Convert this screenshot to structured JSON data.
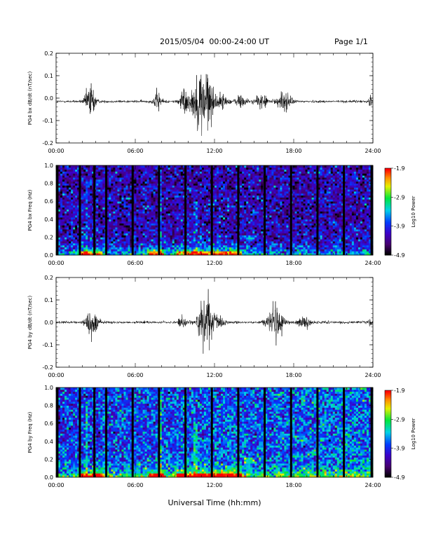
{
  "header": {
    "date_range": "2015/05/04  00:00-24:00 UT",
    "page": "Page 1/1"
  },
  "x_axis_title": "Universal Time (hh:mm)",
  "chart_data": [
    {
      "type": "line",
      "id": "bx-dbdt",
      "ylabel": "PG4 bx dB/dt (nT/sec)",
      "xlim": [
        0,
        24
      ],
      "ylim": [
        -0.2,
        0.2
      ],
      "yticks": [
        "0.2",
        "0.1",
        "0.0",
        "-0.1",
        "-0.2"
      ],
      "ytick_values": [
        0.2,
        0.1,
        0.0,
        -0.1,
        -0.2
      ],
      "xticks": [
        "00:00",
        "06:00",
        "12:00",
        "18:00",
        "24:00"
      ],
      "baseline": -0.015,
      "bursts": [
        {
          "t": 2.6,
          "amp": 0.06,
          "width": 0.35
        },
        {
          "t": 7.7,
          "amp": 0.03,
          "width": 0.3
        },
        {
          "t": 9.7,
          "amp": 0.04,
          "width": 0.35
        },
        {
          "t": 10.6,
          "amp": 0.05,
          "width": 0.4
        },
        {
          "t": 11.3,
          "amp": 0.11,
          "width": 0.55
        },
        {
          "t": 12.5,
          "amp": 0.02,
          "width": 0.5
        },
        {
          "t": 14.0,
          "amp": 0.02,
          "width": 0.4
        },
        {
          "t": 15.6,
          "amp": 0.02,
          "width": 0.5
        },
        {
          "t": 17.3,
          "amp": 0.035,
          "width": 0.45
        },
        {
          "t": 23.8,
          "amp": 0.03,
          "width": 0.1
        }
      ]
    },
    {
      "type": "heatmap",
      "id": "bx-spec",
      "ylabel": "PG4 bx Freq (Hz)",
      "xlim": [
        0,
        24
      ],
      "ylim": [
        0,
        1.0
      ],
      "yticks": [
        "1.0",
        "0.8",
        "0.6",
        "0.4",
        "0.2",
        "0.0"
      ],
      "ytick_values": [
        1.0,
        0.8,
        0.6,
        0.4,
        0.2,
        0.0
      ],
      "xticks": [
        "00:00",
        "06:00",
        "12:00",
        "18:00",
        "24:00"
      ],
      "gaps_hours": [
        0.1,
        1.8,
        2.9,
        3.8,
        5.8,
        7.8,
        9.8,
        11.8,
        13.8,
        15.8,
        17.8,
        19.8,
        21.8,
        23.9
      ],
      "colorbar": {
        "label": "Log10 Power",
        "ticks": [
          "-1.9",
          "-2.9",
          "-3.9",
          "-4.9"
        ],
        "min": -4.9,
        "max": -1.9
      }
    },
    {
      "type": "line",
      "id": "by-dbdt",
      "ylabel": "PG4 by dB/dt (nT/sec)",
      "xlim": [
        0,
        24
      ],
      "ylim": [
        -0.2,
        0.2
      ],
      "yticks": [
        "0.2",
        "0.1",
        "0.0",
        "-0.1",
        "-0.2"
      ],
      "ytick_values": [
        0.2,
        0.1,
        0.0,
        -0.1,
        -0.2
      ],
      "xticks": [
        "00:00",
        "06:00",
        "12:00",
        "18:00",
        "24:00"
      ],
      "baseline": 0.0,
      "bursts": [
        {
          "t": 2.7,
          "amp": 0.05,
          "width": 0.4
        },
        {
          "t": 9.5,
          "amp": 0.02,
          "width": 0.3
        },
        {
          "t": 11.3,
          "amp": 0.08,
          "width": 0.6
        },
        {
          "t": 12.3,
          "amp": 0.02,
          "width": 0.4
        },
        {
          "t": 16.6,
          "amp": 0.06,
          "width": 0.55
        },
        {
          "t": 18.8,
          "amp": 0.015,
          "width": 0.5
        },
        {
          "t": 23.8,
          "amp": 0.02,
          "width": 0.1
        }
      ]
    },
    {
      "type": "heatmap",
      "id": "by-spec",
      "ylabel": "PG4 by Freq (Hz)",
      "xlim": [
        0,
        24
      ],
      "ylim": [
        0,
        1.0
      ],
      "yticks": [
        "1.0",
        "0.8",
        "0.6",
        "0.4",
        "0.2",
        "0.0"
      ],
      "ytick_values": [
        1.0,
        0.8,
        0.6,
        0.4,
        0.2,
        0.0
      ],
      "xticks": [
        "00:00",
        "06:00",
        "12:00",
        "18:00",
        "24:00"
      ],
      "gaps_hours": [
        0.1,
        1.8,
        2.9,
        3.8,
        5.8,
        7.8,
        9.8,
        11.8,
        13.8,
        15.8,
        17.8,
        19.8,
        21.8,
        23.9
      ],
      "colorbar": {
        "label": "Log10 Power",
        "ticks": [
          "-1.9",
          "-2.9",
          "-3.9",
          "-4.9"
        ],
        "min": -4.9,
        "max": -1.9
      }
    }
  ]
}
